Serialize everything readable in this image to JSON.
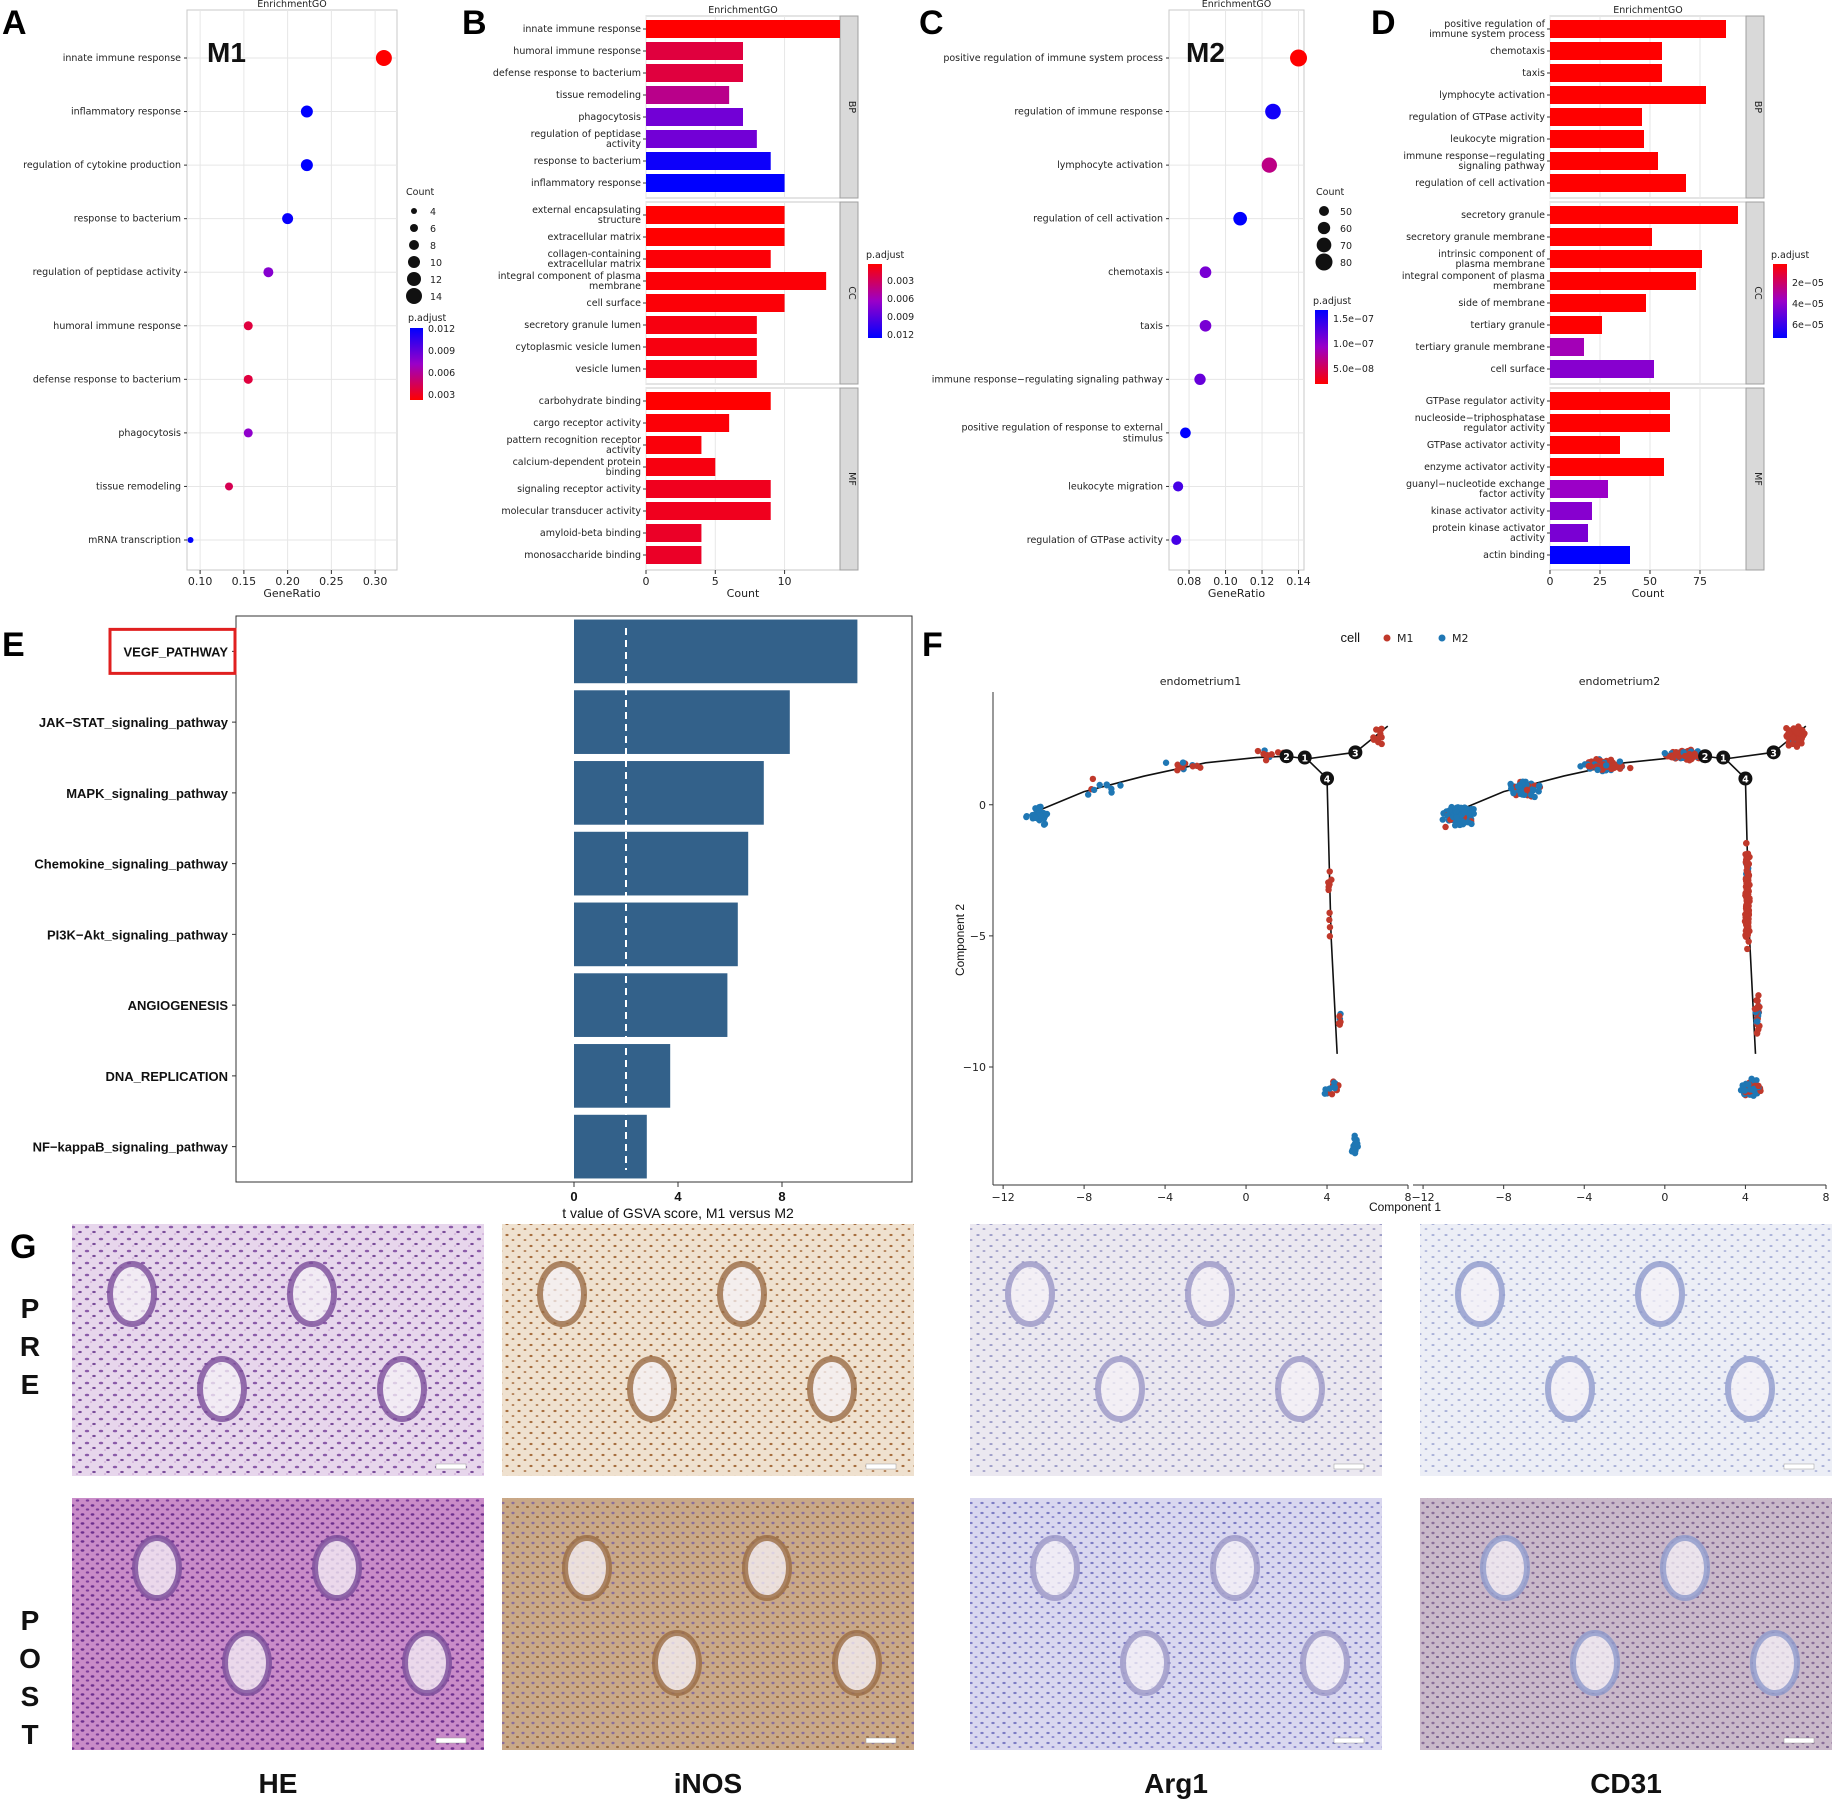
{
  "chart_data": [
    {
      "id": "A",
      "type": "scatter",
      "title": "EnrichmentGO",
      "tag": "M1",
      "xlabel": "GeneRatio",
      "ylabel": "",
      "xlim": [
        0.085,
        0.325
      ],
      "xticks": [
        0.1,
        0.15,
        0.2,
        0.25,
        0.3
      ],
      "xtick_labels": [
        "0.10",
        "0.15",
        "0.20",
        "0.25",
        "0.30"
      ],
      "terms": [
        "innate immune response",
        "inflammatory response",
        "regulation of cytokine production",
        "response to bacterium",
        "regulation of peptidase activity",
        "humoral immune response",
        "defense response to bacterium",
        "phagocytosis",
        "tissue remodeling",
        "mRNA transcription"
      ],
      "gene_ratio": [
        0.31,
        0.222,
        0.222,
        0.2,
        0.178,
        0.155,
        0.155,
        0.155,
        0.133,
        0.089
      ],
      "count": [
        14,
        10,
        10,
        9,
        8,
        7,
        7,
        7,
        6,
        4
      ],
      "p_adjust": [
        0.0003,
        0.0125,
        0.0125,
        0.0122,
        0.0072,
        0.0022,
        0.0022,
        0.0068,
        0.0028,
        0.0128
      ],
      "size_legend": {
        "title": "Count",
        "values": [
          4,
          6,
          8,
          10,
          12,
          14
        ]
      },
      "color_legend": {
        "title": "p.adjust",
        "labels": [
          "0.012",
          "0.009",
          "0.006",
          "0.003"
        ]
      }
    },
    {
      "id": "B",
      "type": "bar",
      "orientation": "horizontal",
      "title": "EnrichmentGO",
      "xlabel": "Count",
      "xlim": [
        0,
        14
      ],
      "xticks": [
        0,
        5,
        10
      ],
      "xtick_labels": [
        "0",
        "5",
        "10"
      ],
      "facets": [
        {
          "name": "BP",
          "terms": [
            "innate immune response",
            "humoral immune response",
            "defense response to bacterium",
            "tissue remodeling",
            "phagocytosis",
            "regulation of peptidase\nactivity",
            "response to bacterium",
            "inflammatory response"
          ],
          "counts": [
            14,
            7,
            7,
            6,
            7,
            8,
            9,
            10
          ],
          "p_adjust": [
            0.0003,
            0.0022,
            0.0022,
            0.0045,
            0.008,
            0.008,
            0.012,
            0.0125
          ]
        },
        {
          "name": "CC",
          "terms": [
            "external encapsulating\nstructure",
            "extracellular matrix",
            "collagen-containing\nextracellular matrix",
            "integral component of plasma\nmembrane",
            "cell surface",
            "secretory granule lumen",
            "cytoplasmic vesicle lumen",
            "vesicle lumen"
          ],
          "counts": [
            10,
            10,
            9,
            13,
            10,
            8,
            8,
            8
          ],
          "p_adjust": [
            0.0003,
            0.0003,
            0.0005,
            0.0005,
            0.0005,
            0.0008,
            0.0008,
            0.0008
          ]
        },
        {
          "name": "MF",
          "terms": [
            "carbohydrate binding",
            "cargo receptor activity",
            "pattern recognition receptor\nactivity",
            "calcium-dependent protein\nbinding",
            "signaling receptor activity",
            "molecular transducer activity",
            "amyloid-beta binding",
            "monosaccharide binding"
          ],
          "counts": [
            9,
            6,
            4,
            5,
            9,
            9,
            4,
            4
          ],
          "p_adjust": [
            0.0003,
            0.0005,
            0.0006,
            0.0008,
            0.0012,
            0.0012,
            0.0015,
            0.0015
          ]
        }
      ],
      "color_legend": {
        "title": "p.adjust",
        "labels": [
          "0.003",
          "0.006",
          "0.009",
          "0.012"
        ]
      }
    },
    {
      "id": "C",
      "type": "scatter",
      "title": "EnrichmentGO",
      "tag": "M2",
      "xlabel": "GeneRatio",
      "xlim": [
        0.069,
        0.143
      ],
      "xticks": [
        0.08,
        0.1,
        0.12,
        0.14
      ],
      "xtick_labels": [
        "0.08",
        "0.10",
        "0.12",
        "0.14"
      ],
      "terms": [
        "positive regulation of immune system process",
        "regulation of immune response",
        "lymphocyte activation",
        "regulation of cell activation",
        "chemotaxis",
        "taxis",
        "immune response−regulating signaling pathway",
        "positive regulation of response to external\nstimulus",
        "leukocyte migration",
        "regulation of GTPase activity"
      ],
      "gene_ratio": [
        0.14,
        0.126,
        0.124,
        0.108,
        0.089,
        0.089,
        0.086,
        0.078,
        0.074,
        0.073
      ],
      "count": [
        88,
        80,
        78,
        68,
        56,
        56,
        54,
        50,
        47,
        46
      ],
      "p_adjust": [
        1e-09,
        1.7e-07,
        6e-08,
        1.8e-07,
        1.1e-07,
        1.1e-07,
        1.2e-07,
        1.8e-07,
        1.4e-07,
        1.4e-07
      ],
      "size_legend": {
        "title": "Count",
        "values": [
          50,
          60,
          70,
          80
        ]
      },
      "color_legend": {
        "title": "p.adjust",
        "labels": [
          "1.5e−07",
          "1.0e−07",
          "5.0e−08"
        ]
      }
    },
    {
      "id": "D",
      "type": "bar",
      "orientation": "horizontal",
      "title": "EnrichmentGO",
      "xlabel": "Count",
      "xlim": [
        0,
        98
      ],
      "xticks": [
        0,
        25,
        50,
        75
      ],
      "xtick_labels": [
        "0",
        "25",
        "50",
        "75"
      ],
      "facets": [
        {
          "name": "BP",
          "terms": [
            "positive regulation of\nimmune system process",
            "chemotaxis",
            "taxis",
            "lymphocyte activation",
            "regulation of GTPase activity",
            "leukocyte migration",
            "immune response−regulating\nsignaling pathway",
            "regulation of cell activation"
          ],
          "counts": [
            88,
            56,
            56,
            78,
            46,
            47,
            54,
            68
          ],
          "p_adjust": [
            5e-07,
            5e-07,
            5e-07,
            5e-07,
            5e-07,
            5e-07,
            5e-07,
            5e-07
          ]
        },
        {
          "name": "CC",
          "terms": [
            "secretory granule",
            "secretory granule membrane",
            "intrinsic component of\nplasma membrane",
            "integral component of plasma\nmembrane",
            "side of membrane",
            "tertiary granule",
            "tertiary granule membrane",
            "cell surface"
          ],
          "counts": [
            94,
            51,
            76,
            73,
            48,
            26,
            17,
            52
          ],
          "p_adjust": [
            5e-07,
            5e-07,
            5e-07,
            5e-07,
            5e-07,
            5e-07,
            3.5e-05,
            4.3e-05
          ]
        },
        {
          "name": "MF",
          "terms": [
            "GTPase regulator activity",
            "nucleoside−triphosphatase\nregulator activity",
            "GTPase activator activity",
            "enzyme activator activity",
            "guanyl−nucleotide exchange\nfactor activity",
            "kinase activator activity",
            "protein kinase activator\nactivity",
            "actin binding"
          ],
          "counts": [
            60,
            60,
            35,
            57,
            29,
            21,
            19,
            40
          ],
          "p_adjust": [
            5e-07,
            5e-07,
            5e-07,
            5e-07,
            3.8e-05,
            4.3e-05,
            4.6e-05,
            7.6e-05
          ]
        }
      ],
      "color_legend": {
        "title": "p.adjust",
        "labels": [
          "2e−05",
          "4e−05",
          "6e−05"
        ]
      }
    },
    {
      "id": "E",
      "type": "bar",
      "orientation": "horizontal",
      "xlabel": "t value of GSVA score, M1 versus M2",
      "xlim": [
        -13,
        13
      ],
      "xticks": [
        0,
        4,
        8
      ],
      "xtick_labels": [
        "0",
        "4",
        "8"
      ],
      "reference_line": 2,
      "categories": [
        "VEGF_PATHWAY",
        "JAK−STAT_signaling_pathway",
        "MAPK_signaling_pathway",
        "Chemokine_signaling_pathway",
        "PI3K−Akt_signaling_pathway",
        "ANGIOGENESIS",
        "DNA_REPLICATION",
        "NF−kappaB_signaling_pathway"
      ],
      "values": [
        10.9,
        8.3,
        7.3,
        6.7,
        6.3,
        5.9,
        3.7,
        2.8
      ],
      "highlight": "VEGF_PATHWAY",
      "bar_color": "#33618a"
    },
    {
      "id": "F",
      "type": "scatter",
      "subtype": "trajectory",
      "legend_title": "cell",
      "legend": [
        {
          "name": "M1",
          "color": "#c0392b"
        },
        {
          "name": "M2",
          "color": "#1f77b4"
        }
      ],
      "facets": [
        "endometrium1",
        "endometrium2"
      ],
      "xlabel": "Component 1",
      "ylabel": "Component 2",
      "xlim": [
        -12.5,
        8
      ],
      "ylim": [
        -14.5,
        4.3
      ],
      "xticks": [
        -12,
        -8,
        -4,
        0,
        4,
        8
      ],
      "yticks": [
        0,
        -5,
        -10
      ],
      "xtick_labels": [
        "−12",
        "−8",
        "−4",
        "0",
        "4",
        "8"
      ],
      "ytick_labels": [
        "0",
        "−5",
        "−10"
      ],
      "branch_nodes": [
        "1",
        "2",
        "3",
        "4"
      ]
    }
  ],
  "panel_letters": {
    "A": "A",
    "B": "B",
    "C": "C",
    "D": "D",
    "E": "E",
    "F": "F",
    "G": "G"
  },
  "histology": {
    "rows": [
      "PRE",
      "POST"
    ],
    "columns": [
      "HE",
      "iNOS",
      "Arg1",
      "CD31"
    ]
  },
  "colors": {
    "low_p": "#ff0000",
    "high_p": "#0000ff",
    "mid_p": "#9a00c8",
    "bar_e": "#33618a",
    "m1": "#c0392b",
    "m2": "#1f77b4"
  }
}
